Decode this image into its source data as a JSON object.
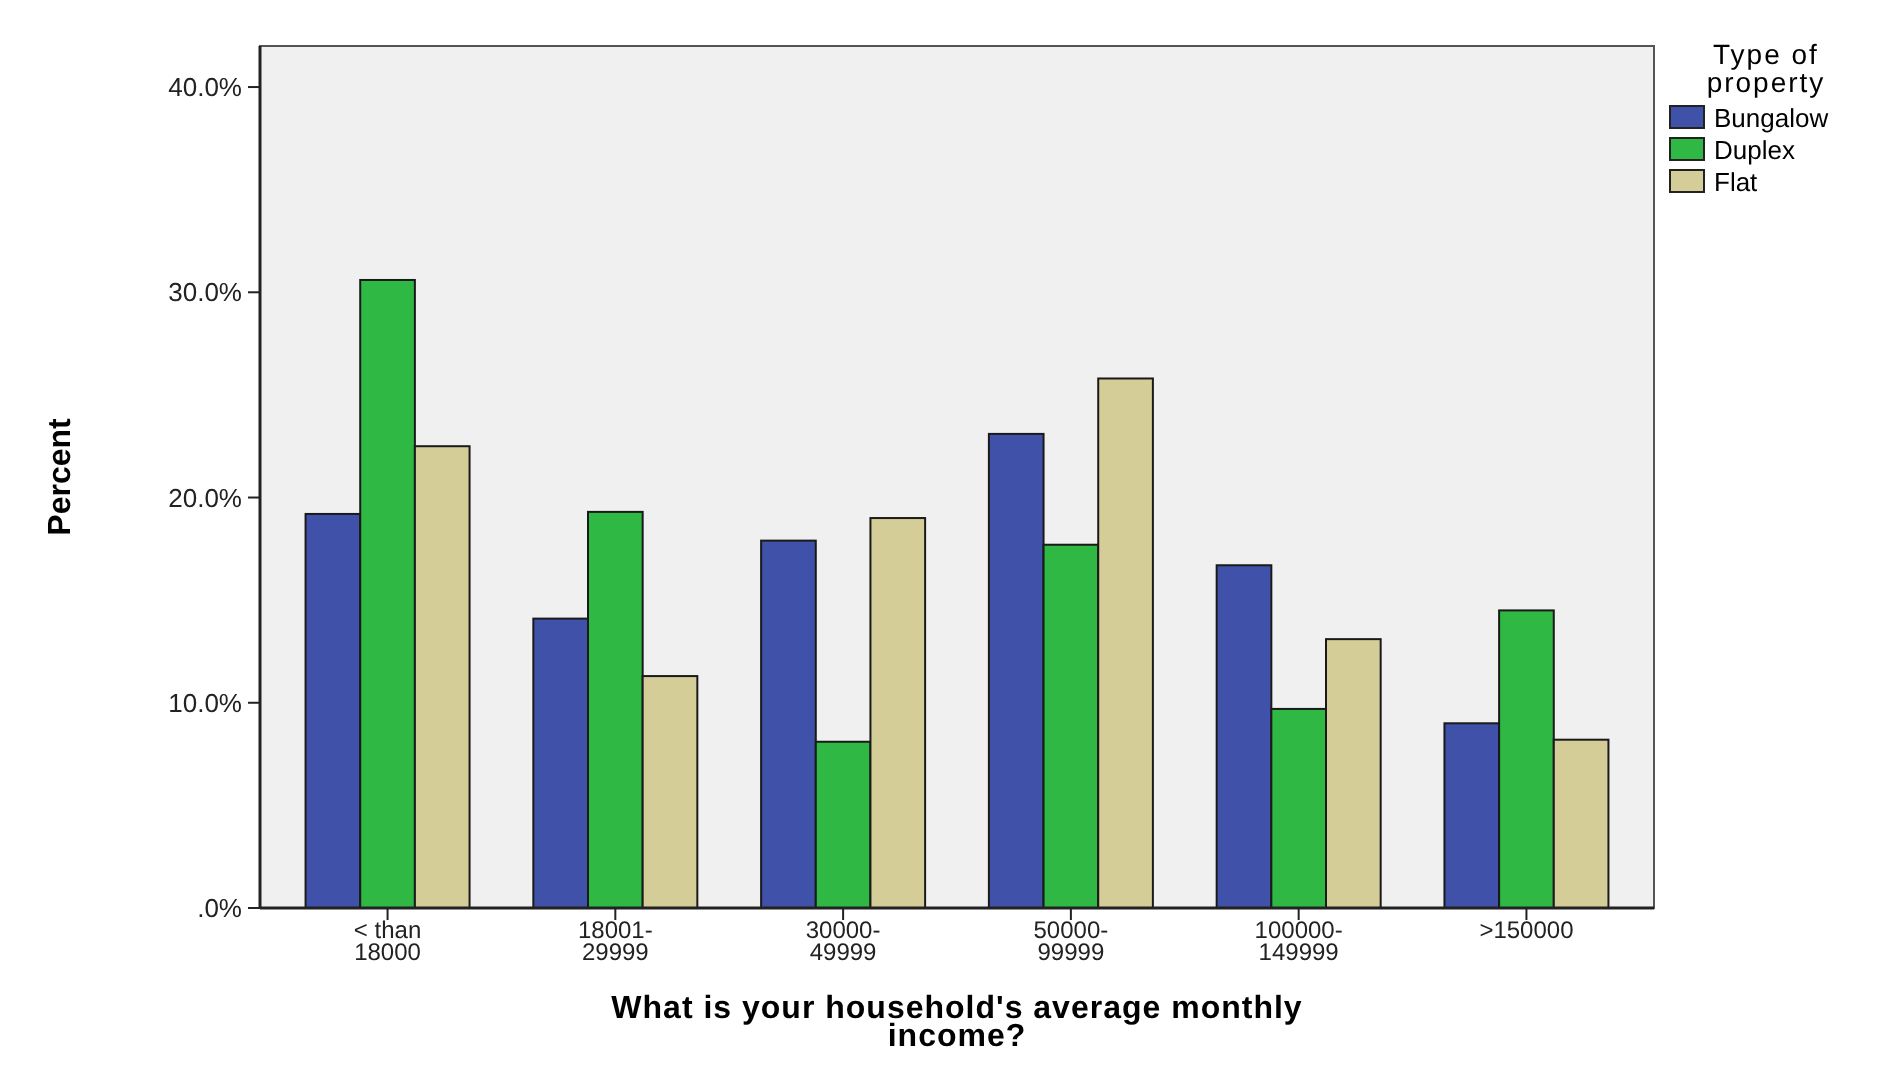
{
  "chart_data": {
    "type": "bar",
    "xlabel": "What is your household's average monthly income?",
    "ylabel": "Percent",
    "legend_title": "Type of property",
    "legend": "top right",
    "categories": [
      "< than\n18000",
      "18001-\n29999",
      "30000-\n49999",
      "50000-\n99999",
      "100000-\n149999",
      ">150000"
    ],
    "series": [
      {
        "name": "Bungalow",
        "color": "#3f51a8",
        "values": [
          19.2,
          14.1,
          17.9,
          23.1,
          16.7,
          9.0
        ]
      },
      {
        "name": "Duplex",
        "color": "#2fb844",
        "values": [
          30.6,
          19.3,
          8.1,
          17.7,
          9.7,
          14.5
        ]
      },
      {
        "name": "Flat",
        "color": "#d4cd98",
        "values": [
          22.5,
          11.3,
          19.0,
          25.8,
          13.1,
          8.2
        ]
      }
    ],
    "ylim": [
      0,
      42
    ],
    "yticks": [
      {
        "value": 0,
        "label": ".0%"
      },
      {
        "value": 10,
        "label": "10.0%"
      },
      {
        "value": 20,
        "label": "20.0%"
      },
      {
        "value": 30,
        "label": "30.0%"
      },
      {
        "value": 40,
        "label": "40.0%"
      }
    ],
    "grid": false
  }
}
